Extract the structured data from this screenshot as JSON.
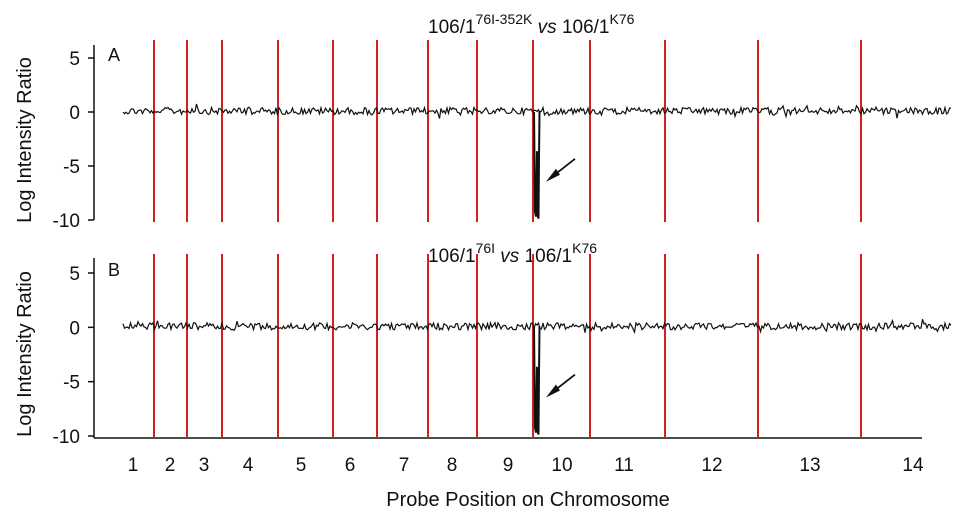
{
  "chart_data": [
    {
      "type": "line",
      "panel_label": "A",
      "title": {
        "pre": "106/1",
        "sup1": "76I-352K",
        "mid": "vs",
        "post": "106/1",
        "sup2": "K76"
      },
      "ylabel": "Log Intensity Ratio",
      "xlabel": "",
      "ylim": [
        -10,
        5
      ],
      "yticks": [
        5,
        0,
        -5,
        -10
      ],
      "baseline_value": 0,
      "deletion": {
        "chromosome": "10",
        "min_value": -9.5,
        "plateau_value": -4
      },
      "arrow": {
        "points_to_value": -6
      }
    },
    {
      "type": "line",
      "panel_label": "B",
      "title": {
        "pre": "106/1",
        "sup1": "76I",
        "mid": "vs",
        "post": "106/1",
        "sup2": "K76"
      },
      "ylabel": "Log Intensity Ratio",
      "xlabel": "Probe Position on Chromosome",
      "ylim": [
        -10,
        5
      ],
      "yticks": [
        5,
        0,
        -5,
        -10
      ],
      "baseline_value": 0,
      "deletion": {
        "chromosome": "10",
        "min_value": -9.5,
        "plateau_value": -4
      },
      "arrow": {
        "points_to_value": -6
      }
    }
  ],
  "chromosomes": [
    "1",
    "2",
    "3",
    "4",
    "5",
    "6",
    "7",
    "8",
    "9",
    "10",
    "11",
    "12",
    "13",
    "14"
  ],
  "colors": {
    "signal": "#111111",
    "boundary": "#d42020",
    "axis": "#111111"
  }
}
